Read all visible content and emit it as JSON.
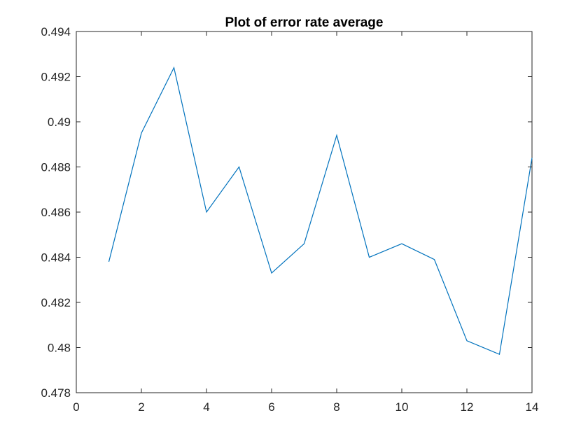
{
  "chart_data": {
    "type": "line",
    "title": "Plot of error rate average",
    "xlabel": "",
    "ylabel": "",
    "xlim": [
      0,
      14
    ],
    "ylim": [
      0.478,
      0.494
    ],
    "xticks": [
      0,
      2,
      4,
      6,
      8,
      10,
      12,
      14
    ],
    "xtick_labels": [
      "0",
      "2",
      "4",
      "6",
      "8",
      "10",
      "12",
      "14"
    ],
    "yticks": [
      0.478,
      0.48,
      0.482,
      0.484,
      0.486,
      0.488,
      0.49,
      0.492,
      0.494
    ],
    "ytick_labels": [
      "0.478",
      "0.48",
      "0.482",
      "0.484",
      "0.486",
      "0.488",
      "0.49",
      "0.492",
      "0.494"
    ],
    "grid": false,
    "box": true,
    "series": [
      {
        "color": "#0072BD",
        "x": [
          1,
          2,
          3,
          4,
          5,
          6,
          7,
          8,
          9,
          10,
          11,
          12,
          13,
          14
        ],
        "y": [
          0.4838,
          0.4895,
          0.4924,
          0.486,
          0.488,
          0.4833,
          0.4846,
          0.4894,
          0.484,
          0.4846,
          0.4839,
          0.4803,
          0.4797,
          0.4884
        ]
      }
    ]
  }
}
